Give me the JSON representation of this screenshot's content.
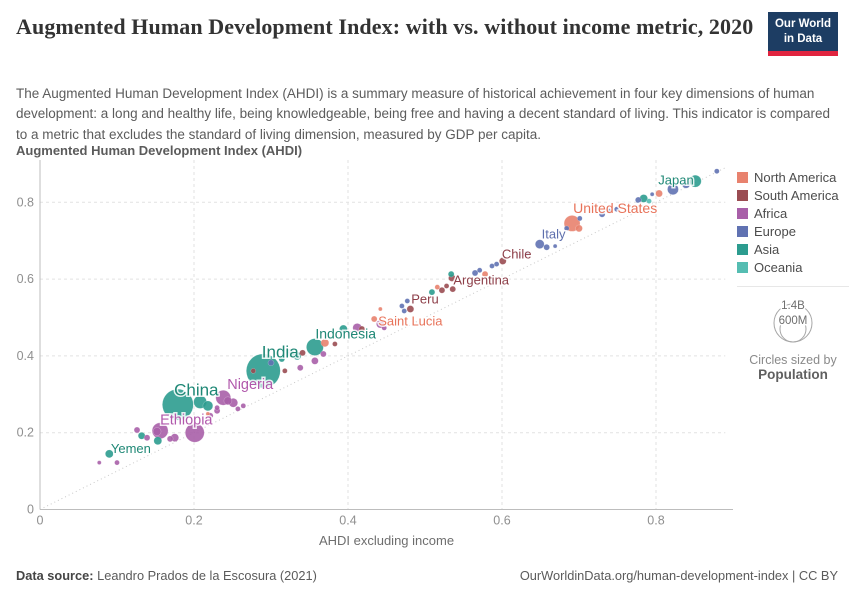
{
  "header": {
    "title": "Augmented Human Development Index: with vs. without income metric, 2020",
    "subtitle": "The Augmented Human Development Index (AHDI) is a summary measure of historical achievement in four key dimensions of human development: a long and healthy life, being knowledgeable, being free and having a decent standard of living. This indicator is compared to a metric that excludes the standard of living dimension, measured by GDP per capita.",
    "logo": {
      "line1": "Our World",
      "line2": "in Data"
    }
  },
  "legend": {
    "items": [
      {
        "label": "North America",
        "code": "NA"
      },
      {
        "label": "South America",
        "code": "SA"
      },
      {
        "label": "Africa",
        "code": "AF"
      },
      {
        "label": "Europe",
        "code": "EU"
      },
      {
        "label": "Asia",
        "code": "AS"
      },
      {
        "label": "Oceania",
        "code": "OC"
      }
    ],
    "size_legend": {
      "outer_label": "1.4B",
      "inner_label": "600M",
      "caption": "Circles sized by",
      "caption_bold": "Population"
    }
  },
  "footer": {
    "source_label": "Data source:",
    "source_value": "Leandro Prados de la Escosura (2021)",
    "attribution": "OurWorldinData.org/human-development-index | CC BY"
  },
  "chart_data": {
    "type": "scatter",
    "title": "Augmented Human Development Index: with vs. without income metric, 2020",
    "ylabel": "Augmented Human Development Index (AHDI)",
    "xlabel": "AHDI excluding income",
    "xlim": [
      0,
      0.89
    ],
    "ylim": [
      0,
      0.91
    ],
    "x_ticks": [
      0,
      0.2,
      0.4,
      0.6,
      0.8
    ],
    "y_ticks": [
      0,
      0.2,
      0.4,
      0.6,
      0.8
    ],
    "grid": "dashed",
    "reference_line": "y = x diagonal, dotted",
    "size_by": "Population",
    "legend_position": "right",
    "colors": {
      "NA": "#E8826E",
      "SA": "#9A4C52",
      "AF": "#A85FA8",
      "EU": "#6072B2",
      "AS": "#2C9C8F",
      "OC": "#55BDB2"
    },
    "label_colors": {
      "NA": "#E8735A",
      "SA": "#8D3E48",
      "AF": "#B159AC",
      "EU": "#5E6FAD",
      "AS": "#1F8876",
      "OC": "#3AA99D"
    },
    "points": [
      {
        "x": 0.077,
        "y": 0.122,
        "r": 2,
        "c": "AF"
      },
      {
        "x": 0.09,
        "y": 0.145,
        "r": 4,
        "c": "AS",
        "label": "Yemen"
      },
      {
        "x": 0.1,
        "y": 0.122,
        "r": 2.5,
        "c": "AF"
      },
      {
        "x": 0.126,
        "y": 0.207,
        "r": 3,
        "c": "AF"
      },
      {
        "x": 0.132,
        "y": 0.192,
        "r": 3.5,
        "c": "AS"
      },
      {
        "x": 0.139,
        "y": 0.187,
        "r": 3,
        "c": "AF"
      },
      {
        "x": 0.152,
        "y": 0.203,
        "r": 4,
        "c": "AF"
      },
      {
        "x": 0.153,
        "y": 0.179,
        "r": 4,
        "c": "AS"
      },
      {
        "x": 0.156,
        "y": 0.205,
        "r": 8,
        "c": "AF"
      },
      {
        "x": 0.169,
        "y": 0.184,
        "r": 3,
        "c": "AF"
      },
      {
        "x": 0.175,
        "y": 0.187,
        "r": 4,
        "c": "AF"
      },
      {
        "x": 0.201,
        "y": 0.2,
        "r": 9.5,
        "c": "AF",
        "label": "Ethiopia"
      },
      {
        "x": 0.221,
        "y": 0.244,
        "r": 3,
        "c": "AF"
      },
      {
        "x": 0.179,
        "y": 0.273,
        "r": 15.5,
        "c": "AS",
        "label": "China"
      },
      {
        "x": 0.208,
        "y": 0.28,
        "r": 6.5,
        "c": "AS"
      },
      {
        "x": 0.218,
        "y": 0.27,
        "r": 5,
        "c": "AS"
      },
      {
        "x": 0.218,
        "y": 0.249,
        "r": 2,
        "c": "NA"
      },
      {
        "x": 0.23,
        "y": 0.257,
        "r": 3,
        "c": "AF"
      },
      {
        "x": 0.23,
        "y": 0.265,
        "r": 2.5,
        "c": "AF"
      },
      {
        "x": 0.238,
        "y": 0.291,
        "r": 7.5,
        "c": "AF",
        "label": "Nigeria"
      },
      {
        "x": 0.244,
        "y": 0.283,
        "r": 4,
        "c": "AF"
      },
      {
        "x": 0.251,
        "y": 0.278,
        "r": 4.5,
        "c": "AF"
      },
      {
        "x": 0.257,
        "y": 0.262,
        "r": 2.5,
        "c": "AF"
      },
      {
        "x": 0.264,
        "y": 0.27,
        "r": 2.5,
        "c": "AF"
      },
      {
        "x": 0.29,
        "y": 0.361,
        "r": 17,
        "c": "AS",
        "label": "India"
      },
      {
        "x": 0.3,
        "y": 0.382,
        "r": 3,
        "c": "EU"
      },
      {
        "x": 0.277,
        "y": 0.361,
        "r": 2.5,
        "c": "SA"
      },
      {
        "x": 0.314,
        "y": 0.392,
        "r": 3,
        "c": "AS"
      },
      {
        "x": 0.318,
        "y": 0.361,
        "r": 2.5,
        "c": "SA"
      },
      {
        "x": 0.334,
        "y": 0.4,
        "r": 4,
        "c": "AS"
      },
      {
        "x": 0.338,
        "y": 0.369,
        "r": 3,
        "c": "AF"
      },
      {
        "x": 0.325,
        "y": 0.408,
        "r": 4,
        "c": "AS"
      },
      {
        "x": 0.341,
        "y": 0.408,
        "r": 3,
        "c": "SA"
      },
      {
        "x": 0.357,
        "y": 0.387,
        "r": 3.5,
        "c": "AF"
      },
      {
        "x": 0.357,
        "y": 0.423,
        "r": 8.5,
        "c": "AS",
        "label": "Indonesia"
      },
      {
        "x": 0.37,
        "y": 0.434,
        "r": 4,
        "c": "NA"
      },
      {
        "x": 0.383,
        "y": 0.431,
        "r": 2.5,
        "c": "SA"
      },
      {
        "x": 0.394,
        "y": 0.47,
        "r": 4,
        "c": "AS"
      },
      {
        "x": 0.403,
        "y": 0.457,
        "r": 3,
        "c": "AF"
      },
      {
        "x": 0.412,
        "y": 0.473,
        "r": 4.5,
        "c": "AF"
      },
      {
        "x": 0.418,
        "y": 0.47,
        "r": 3,
        "c": "SA"
      },
      {
        "x": 0.368,
        "y": 0.405,
        "r": 3,
        "c": "AF"
      },
      {
        "x": 0.434,
        "y": 0.496,
        "r": 3,
        "c": "NA",
        "label": "Saint Lucia"
      },
      {
        "x": 0.442,
        "y": 0.483,
        "r": 4,
        "c": "AF"
      },
      {
        "x": 0.447,
        "y": 0.473,
        "r": 2.5,
        "c": "AF"
      },
      {
        "x": 0.442,
        "y": 0.522,
        "r": 2,
        "c": "NA"
      },
      {
        "x": 0.47,
        "y": 0.53,
        "r": 2.5,
        "c": "EU"
      },
      {
        "x": 0.477,
        "y": 0.543,
        "r": 2.5,
        "c": "EU"
      },
      {
        "x": 0.473,
        "y": 0.517,
        "r": 2.5,
        "c": "EU"
      },
      {
        "x": 0.481,
        "y": 0.522,
        "r": 3.5,
        "c": "SA",
        "label": "Peru"
      },
      {
        "x": 0.509,
        "y": 0.566,
        "r": 3,
        "c": "AS"
      },
      {
        "x": 0.516,
        "y": 0.579,
        "r": 2.5,
        "c": "NA"
      },
      {
        "x": 0.522,
        "y": 0.571,
        "r": 3,
        "c": "SA"
      },
      {
        "x": 0.528,
        "y": 0.582,
        "r": 2.5,
        "c": "SA"
      },
      {
        "x": 0.536,
        "y": 0.574,
        "r": 3,
        "c": "SA"
      },
      {
        "x": 0.535,
        "y": 0.603,
        "r": 3.5,
        "c": "SA",
        "label": "Argentina"
      },
      {
        "x": 0.534,
        "y": 0.613,
        "r": 3,
        "c": "AS"
      },
      {
        "x": 0.565,
        "y": 0.616,
        "r": 3,
        "c": "EU"
      },
      {
        "x": 0.571,
        "y": 0.623,
        "r": 2.5,
        "c": "EU"
      },
      {
        "x": 0.578,
        "y": 0.613,
        "r": 3,
        "c": "NA"
      },
      {
        "x": 0.587,
        "y": 0.634,
        "r": 2.5,
        "c": "EU"
      },
      {
        "x": 0.593,
        "y": 0.639,
        "r": 2.5,
        "c": "EU"
      },
      {
        "x": 0.601,
        "y": 0.647,
        "r": 3.5,
        "c": "SA",
        "label": "Chile"
      },
      {
        "x": 0.623,
        "y": 0.66,
        "r": 2.5,
        "c": "EU"
      },
      {
        "x": 0.632,
        "y": 0.667,
        "r": 2.5,
        "c": "EU"
      },
      {
        "x": 0.649,
        "y": 0.691,
        "r": 4.5,
        "c": "EU",
        "label": "Italy"
      },
      {
        "x": 0.658,
        "y": 0.683,
        "r": 3,
        "c": "EU"
      },
      {
        "x": 0.669,
        "y": 0.686,
        "r": 2,
        "c": "EU"
      },
      {
        "x": 0.684,
        "y": 0.732,
        "r": 2.5,
        "c": "EU"
      },
      {
        "x": 0.691,
        "y": 0.745,
        "r": 8,
        "c": "NA",
        "label": "United States"
      },
      {
        "x": 0.7,
        "y": 0.732,
        "r": 3.5,
        "c": "NA"
      },
      {
        "x": 0.701,
        "y": 0.758,
        "r": 2.5,
        "c": "EU"
      },
      {
        "x": 0.73,
        "y": 0.769,
        "r": 3,
        "c": "EU"
      },
      {
        "x": 0.74,
        "y": 0.777,
        "r": 2.5,
        "c": "EU"
      },
      {
        "x": 0.749,
        "y": 0.782,
        "r": 2.5,
        "c": "EU"
      },
      {
        "x": 0.777,
        "y": 0.806,
        "r": 3,
        "c": "EU"
      },
      {
        "x": 0.784,
        "y": 0.81,
        "r": 4,
        "c": "AS"
      },
      {
        "x": 0.791,
        "y": 0.803,
        "r": 2.5,
        "c": "OC"
      },
      {
        "x": 0.795,
        "y": 0.821,
        "r": 2,
        "c": "EU"
      },
      {
        "x": 0.804,
        "y": 0.823,
        "r": 3.5,
        "c": "NA"
      },
      {
        "x": 0.822,
        "y": 0.834,
        "r": 5.5,
        "c": "EU"
      },
      {
        "x": 0.839,
        "y": 0.847,
        "r": 4,
        "c": "EU"
      },
      {
        "x": 0.851,
        "y": 0.855,
        "r": 6,
        "c": "AS",
        "label": "Japan"
      },
      {
        "x": 0.879,
        "y": 0.881,
        "r": 2.5,
        "c": "EU"
      }
    ],
    "label_positions": {
      "Yemen": {
        "x": 0.118,
        "y": 0.158,
        "fs": 13
      },
      "Ethiopia": {
        "x": 0.19,
        "y": 0.234,
        "fs": 14.5
      },
      "China": {
        "x": 0.203,
        "y": 0.312,
        "fs": 17
      },
      "Nigeria": {
        "x": 0.273,
        "y": 0.327,
        "fs": 14.5
      },
      "India": {
        "x": 0.312,
        "y": 0.41,
        "fs": 17
      },
      "Indonesia": {
        "x": 0.397,
        "y": 0.457,
        "fs": 14
      },
      "Saint Lucia": {
        "x": 0.481,
        "y": 0.491,
        "fs": 13
      },
      "Peru": {
        "x": 0.5,
        "y": 0.548,
        "fs": 13
      },
      "Argentina": {
        "x": 0.573,
        "y": 0.597,
        "fs": 13
      },
      "Chile": {
        "x": 0.619,
        "y": 0.665,
        "fs": 13
      },
      "Italy": {
        "x": 0.667,
        "y": 0.717,
        "fs": 13
      },
      "United States": {
        "x": 0.747,
        "y": 0.784,
        "fs": 14
      },
      "Japan": {
        "x": 0.826,
        "y": 0.857,
        "fs": 13
      }
    }
  }
}
